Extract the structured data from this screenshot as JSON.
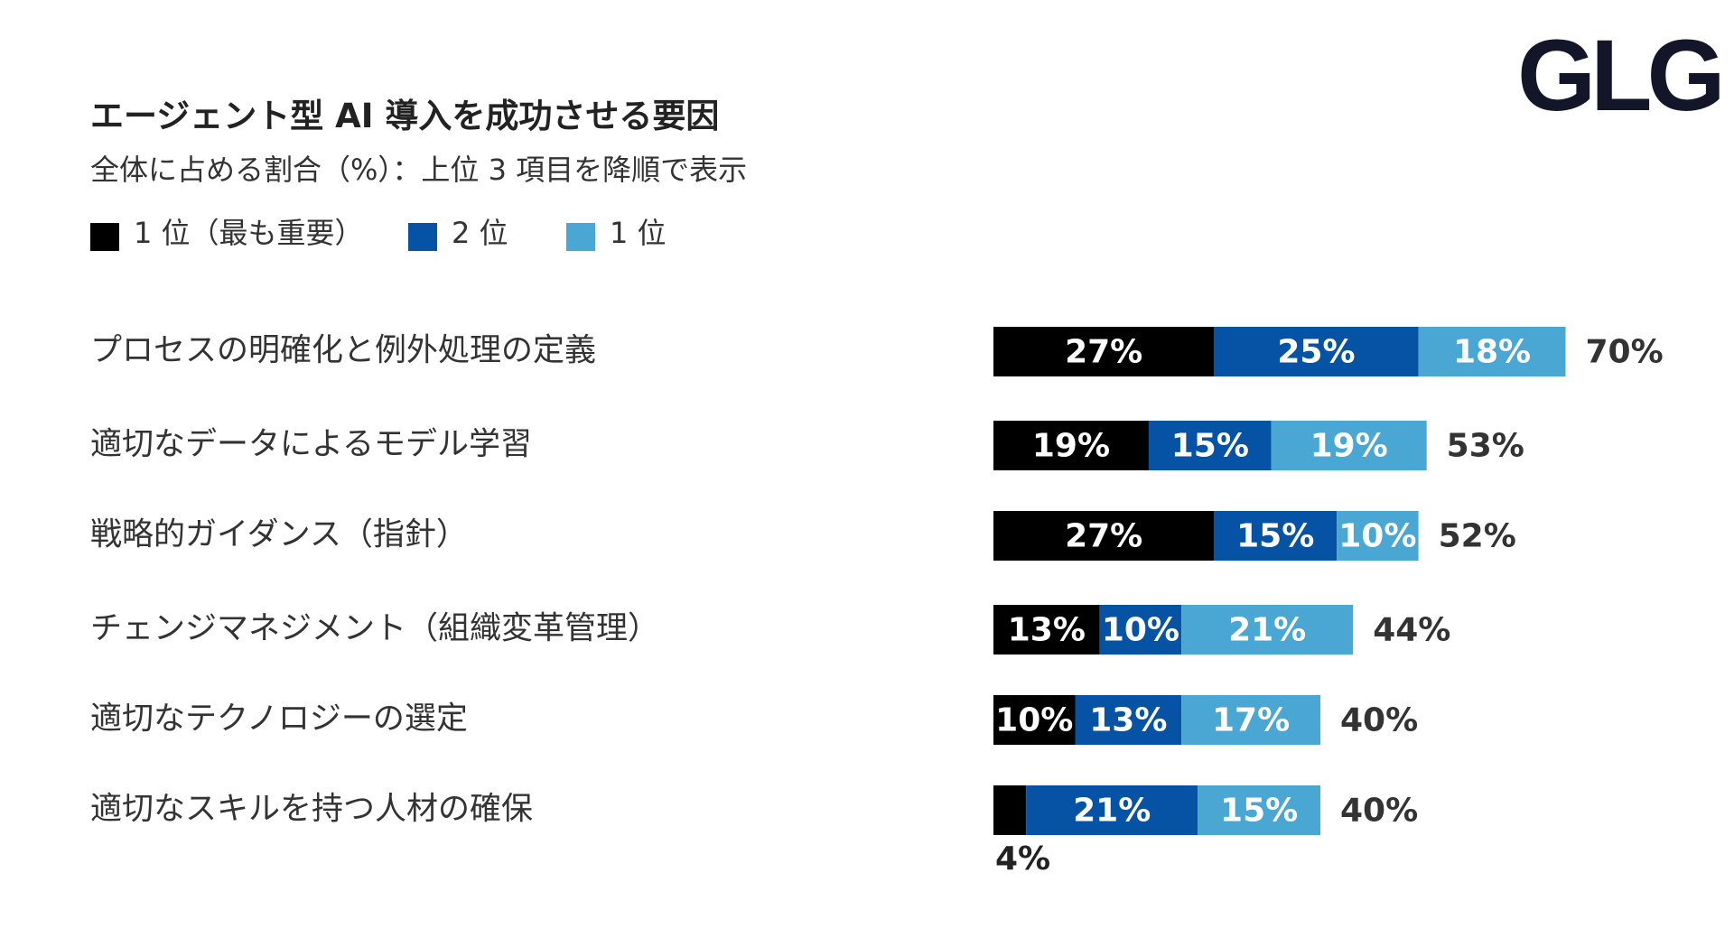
{
  "page": {
    "title": "エージェント型 AI 導入を成功させる要因",
    "subtitle": "全体に占める割合（%）：上位 3 項目を降順で表示",
    "logo_text": "GLG"
  },
  "colors": {
    "rank1": "#000000",
    "rank2": "#0653a5",
    "rank3": "#4aa7d4",
    "text": "#333333",
    "logo": "#131629"
  },
  "chart_data": {
    "type": "bar",
    "orientation": "horizontal",
    "stacked": true,
    "title": "エージェント型 AI 導入を成功させる要因",
    "subtitle": "全体に占める割合（%）：上位 3 項目を降順で表示",
    "legend_position": "top-left",
    "grid": false,
    "xlim": [
      0,
      70
    ],
    "categories": [
      "プロセスの明確化と例外処理の定義",
      "適切なデータによるモデル学習",
      "戦略的ガイダンス（指針）",
      "チェンジマネジメント（組織変革管理）",
      "適切なテクノロジーの選定",
      "適切なスキルを持つ人材の確保"
    ],
    "series": [
      {
        "name": "1 位（最も重要）",
        "color": "#000000",
        "values": [
          27,
          19,
          27,
          13,
          10,
          4
        ]
      },
      {
        "name": "2 位",
        "color": "#0653a5",
        "values": [
          25,
          15,
          15,
          10,
          13,
          21
        ]
      },
      {
        "name": "1 位",
        "color": "#4aa7d4",
        "values": [
          18,
          19,
          10,
          21,
          17,
          15
        ]
      }
    ],
    "totals": [
      70,
      53,
      52,
      44,
      40,
      40
    ],
    "value_suffix": "%"
  }
}
